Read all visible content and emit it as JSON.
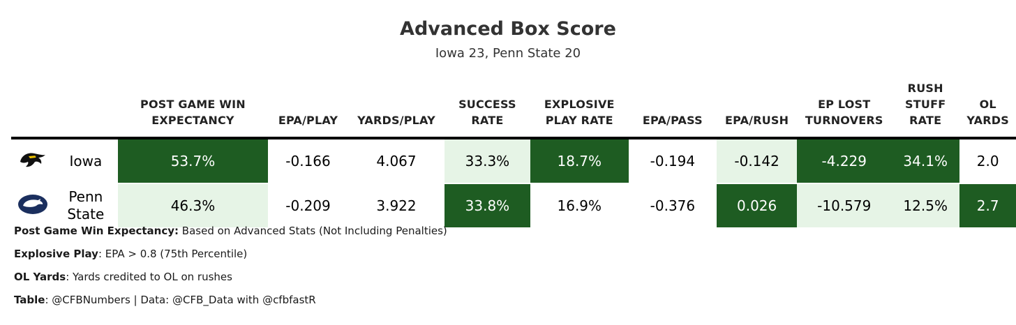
{
  "chart_data": {
    "type": "table",
    "title": "Advanced Box Score",
    "subtitle": "Iowa 23, Penn State 20",
    "columns": [
      "POST GAME WIN EXPECTANCY",
      "EPA/PLAY",
      "YARDS/PLAY",
      "SUCCESS RATE",
      "EXPLOSIVE PLAY RATE",
      "EPA/PASS",
      "EPA/RUSH",
      "EP LOST TURNOVERS",
      "RUSH STUFF RATE",
      "OL YARDS"
    ],
    "rows": [
      {
        "team": "Iowa",
        "logo": "iowa-hawkeye-icon",
        "values": [
          "53.7%",
          "-0.166",
          "4.067",
          "33.3%",
          "18.7%",
          "-0.194",
          "-0.142",
          "-4.229",
          "34.1%",
          "2.0"
        ],
        "shades": [
          "dark",
          "plain",
          "plain",
          "light",
          "dark",
          "plain",
          "light",
          "dark",
          "dark",
          "plain"
        ]
      },
      {
        "team": "Penn State",
        "logo": "penn-state-nittany-lion-icon",
        "values": [
          "46.3%",
          "-0.209",
          "3.922",
          "33.8%",
          "16.9%",
          "-0.376",
          "0.026",
          "-10.579",
          "12.5%",
          "2.7"
        ],
        "shades": [
          "light",
          "plain",
          "plain",
          "dark",
          "plain",
          "plain",
          "dark",
          "light",
          "light",
          "dark"
        ]
      }
    ]
  },
  "colors": {
    "dark_green": "#1e5c22",
    "light_green": "#e6f4e6",
    "penn_state_navy": "#1b2f5e"
  },
  "notes": [
    {
      "label": "Post Game Win Expectancy:",
      "text": " Based on Advanced Stats (Not Including Penalties)"
    },
    {
      "label": "Explosive Play",
      "text": ": EPA > 0.8 (75th Percentile)"
    },
    {
      "label": "OL Yards",
      "text": ": Yards credited to OL on rushes"
    },
    {
      "label": "Table",
      "text": ": @CFBNumbers | Data: @CFB_Data with @cfbfastR"
    }
  ]
}
